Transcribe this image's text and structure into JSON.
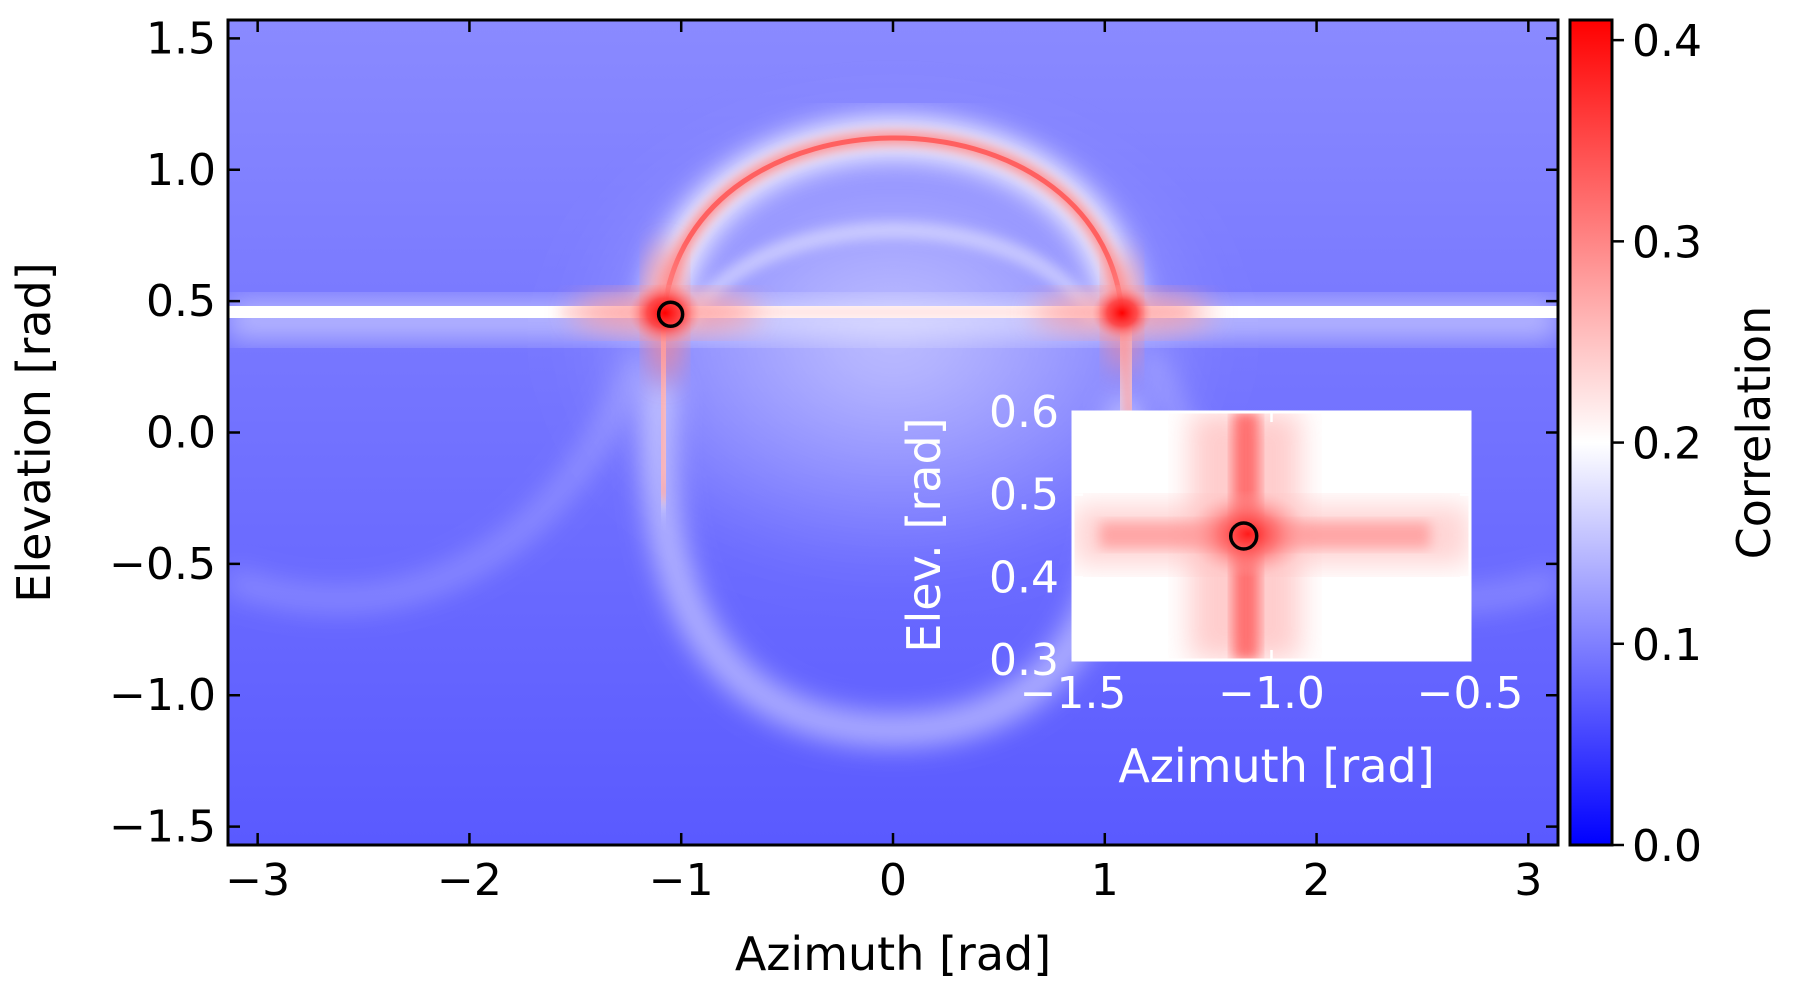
{
  "chart_data": {
    "type": "heatmap",
    "title": "",
    "xlabel": "Azimuth [rad]",
    "ylabel": "Elevation [rad]",
    "xlim": [
      -3.14,
      3.14
    ],
    "ylim": [
      -1.57,
      1.57
    ],
    "xticks": [
      -3,
      -2,
      -1,
      0,
      1,
      2,
      3
    ],
    "yticks": [
      -1.5,
      -1.0,
      -0.5,
      0.0,
      0.5,
      1.0,
      1.5
    ],
    "xtick_labels": [
      "−3",
      "−2",
      "−1",
      "0",
      "1",
      "2",
      "3"
    ],
    "ytick_labels": [
      "−1.5",
      "−1.0",
      "−0.5",
      "0.0",
      "0.5",
      "1.0",
      "1.5"
    ],
    "colorbar": {
      "label": "Correlation",
      "range": [
        0.0,
        0.41
      ],
      "ticks": [
        0.0,
        0.1,
        0.2,
        0.3,
        0.4
      ],
      "tick_labels": [
        "0.0",
        "0.1",
        "0.2",
        "0.3",
        "0.4"
      ],
      "colormap": "bwr",
      "colors": {
        "low": "#0000ff",
        "mid": "#ffffff",
        "high": "#ff0000"
      }
    },
    "features": {
      "horizontal_band_elevation": 0.46,
      "arc_peak_elevation": 1.13,
      "arc_feet_azimuth": [
        -1.08,
        1.1
      ],
      "peaks": [
        {
          "azimuth": -1.08,
          "elevation": 0.45,
          "correlation": 0.4
        },
        {
          "azimuth": 1.1,
          "elevation": 0.46,
          "correlation": 0.38
        }
      ],
      "background_correlation": {
        "top": 0.12,
        "bottom": 0.06
      }
    },
    "marker": {
      "azimuth": -1.05,
      "elevation": 0.45,
      "shape": "circle",
      "color": "#000000"
    },
    "inset": {
      "xlabel": "Azimuth [rad]",
      "ylabel": "Elev. [rad]",
      "xlim": [
        -1.5,
        -0.5
      ],
      "ylim": [
        0.3,
        0.6
      ],
      "xticks": [
        -1.5,
        -1.0,
        -0.5
      ],
      "yticks": [
        0.3,
        0.4,
        0.5,
        0.6
      ],
      "xtick_labels": [
        "−1.5",
        "−1.0",
        "−0.5"
      ],
      "ytick_labels": [
        "0.3",
        "0.4",
        "0.5",
        "0.6"
      ],
      "marker": {
        "azimuth": -1.07,
        "elevation": 0.45
      }
    }
  }
}
